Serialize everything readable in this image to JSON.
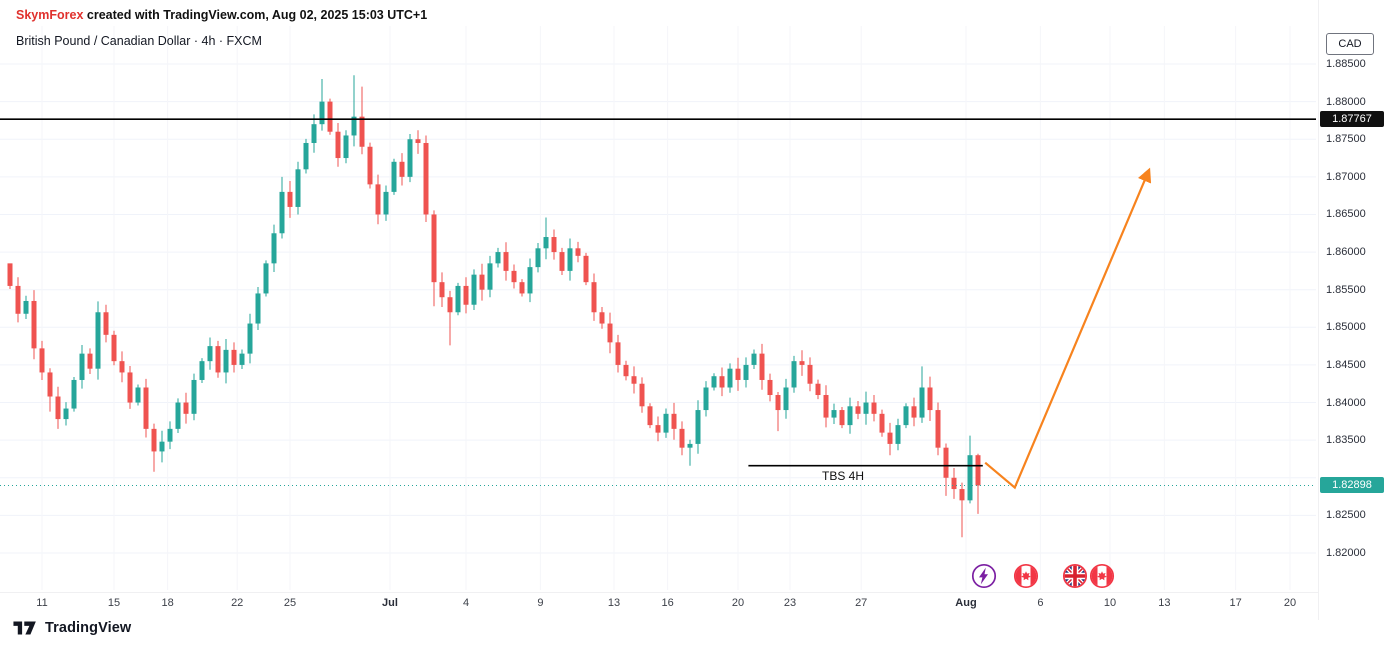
{
  "attribution": {
    "brand": "SkymForex",
    "rest": " created with TradingView.com, Aug 02, 2025 15:03 UTC+1"
  },
  "header": {
    "symbol_title": "British Pound / Canadian Dollar · 4h · FXCM"
  },
  "axis": {
    "currency_label": "CAD"
  },
  "badges": {
    "resistance_price": "1.87767",
    "last_price": "1.82898"
  },
  "annotations": {
    "support_label": "TBS 4H"
  },
  "footer": {
    "logo_text": "TradingView"
  },
  "colors": {
    "up": "#26a69a",
    "down": "#ef5350",
    "arrow": "#f7831e",
    "brand_red": "#e0312d",
    "badge_black": "#101010",
    "badge_teal": "#26a69a",
    "event_purple": "#7b1fa2",
    "event_red": "#f23645",
    "uk_blue": "#26387f",
    "grid": "#f0f3fa",
    "vgrid": "#f5f6f9",
    "line_black": "#000000"
  },
  "chart_data": {
    "type": "candlestick",
    "title": "British Pound / Canadian Dollar",
    "interval": "4h",
    "exchange": "FXCM",
    "quote_currency": "CAD",
    "last_price": 1.82898,
    "y_axis": {
      "ticks": [
        {
          "label": "1.88500",
          "value": 1.885
        },
        {
          "label": "1.88000",
          "value": 1.88
        },
        {
          "label": "1.87500",
          "value": 1.875
        },
        {
          "label": "1.87000",
          "value": 1.87
        },
        {
          "label": "1.86500",
          "value": 1.865
        },
        {
          "label": "1.86000",
          "value": 1.86
        },
        {
          "label": "1.85500",
          "value": 1.855
        },
        {
          "label": "1.85000",
          "value": 1.85
        },
        {
          "label": "1.84500",
          "value": 1.845
        },
        {
          "label": "1.84000",
          "value": 1.84
        },
        {
          "label": "1.83500",
          "value": 1.835
        },
        {
          "label": "1.82500",
          "value": 1.825
        },
        {
          "label": "1.82000",
          "value": 1.82
        }
      ],
      "gridlines": [
        1.885,
        1.88,
        1.875,
        1.87,
        1.865,
        1.86,
        1.855,
        1.85,
        1.845,
        1.84,
        1.835,
        1.83,
        1.825,
        1.82
      ]
    },
    "x_axis": {
      "ticks": [
        {
          "label": "11",
          "i": 4
        },
        {
          "label": "15",
          "i": 13
        },
        {
          "label": "18",
          "i": 19.7
        },
        {
          "label": "22",
          "i": 28.4
        },
        {
          "label": "25",
          "i": 35
        },
        {
          "label": "Jul",
          "i": 47.5,
          "bold": true
        },
        {
          "label": "4",
          "i": 57
        },
        {
          "label": "9",
          "i": 66.3
        },
        {
          "label": "13",
          "i": 75.5
        },
        {
          "label": "16",
          "i": 82.2
        },
        {
          "label": "20",
          "i": 91
        },
        {
          "label": "23",
          "i": 97.5
        },
        {
          "label": "27",
          "i": 106.4
        },
        {
          "label": "Aug",
          "i": 119.5,
          "bold": true
        },
        {
          "label": "6",
          "i": 128.8
        },
        {
          "label": "10",
          "i": 137.5
        },
        {
          "label": "13",
          "i": 144.3
        },
        {
          "label": "17",
          "i": 153.2
        },
        {
          "label": "20",
          "i": 160
        }
      ]
    },
    "resistance_line": {
      "price": 1.87767
    },
    "support_line": {
      "price": 1.8316,
      "from_i": 92.3,
      "to_i": 121.6,
      "label": "TBS 4H"
    },
    "last_price_line": {
      "price": 1.82898
    },
    "arrow": {
      "points": [
        [
          121.9,
          1.832
        ],
        [
          125.6,
          1.8287
        ],
        [
          142.3,
          1.8707
        ]
      ]
    },
    "events": [
      "lightning",
      "canada-flag",
      "uk-flag",
      "canada-flag"
    ],
    "candles": {
      "first_open": 1.8585,
      "default_wick": 0.0012,
      "closes": [
        1.8555,
        1.8518,
        1.8535,
        1.8472,
        1.844,
        1.8408,
        1.8378,
        1.8392,
        1.843,
        1.8465,
        1.8445,
        1.852,
        1.849,
        1.8455,
        1.844,
        1.84,
        1.842,
        1.8365,
        1.8335,
        1.8348,
        1.8365,
        1.84,
        1.8385,
        1.843,
        1.8455,
        1.8475,
        1.844,
        1.847,
        1.845,
        1.8465,
        1.8505,
        1.8545,
        1.8585,
        1.8625,
        1.868,
        1.866,
        1.871,
        1.8745,
        1.877,
        1.88,
        1.876,
        1.8725,
        1.8755,
        1.878,
        1.874,
        1.869,
        1.865,
        1.868,
        1.872,
        1.87,
        1.875,
        1.8745,
        1.865,
        1.856,
        1.854,
        1.852,
        1.8555,
        1.853,
        1.857,
        1.855,
        1.8585,
        1.86,
        1.8575,
        1.856,
        1.8545,
        1.858,
        1.8605,
        1.862,
        1.86,
        1.8575,
        1.8605,
        1.8595,
        1.856,
        1.852,
        1.8505,
        1.848,
        1.845,
        1.8435,
        1.8425,
        1.8395,
        1.837,
        1.836,
        1.8385,
        1.8365,
        1.834,
        1.8345,
        1.839,
        1.842,
        1.8435,
        1.842,
        1.8445,
        1.843,
        1.845,
        1.8465,
        1.843,
        1.841,
        1.839,
        1.842,
        1.8455,
        1.845,
        1.8425,
        1.841,
        1.838,
        1.839,
        1.837,
        1.8395,
        1.8385,
        1.84,
        1.8385,
        1.836,
        1.8345,
        1.837,
        1.8395,
        1.838,
        1.842,
        1.839,
        1.834,
        1.83,
        1.8285,
        1.827,
        1.833,
        1.82898
      ],
      "overrides": {
        "0": {
          "h": 1.858
        },
        "5": {
          "l": 1.8388
        },
        "18": {
          "l": 1.8308
        },
        "34": {
          "h": 1.87
        },
        "39": {
          "h": 1.883
        },
        "43": {
          "h": 1.8835
        },
        "44": {
          "h": 1.882
        },
        "51": {
          "h": 1.8762
        },
        "53": {
          "l": 1.8528
        },
        "55": {
          "l": 1.8476
        },
        "67": {
          "h": 1.8646
        },
        "85": {
          "l": 1.8316
        },
        "96": {
          "l": 1.8362
        },
        "110": {
          "l": 1.833
        },
        "114": {
          "h": 1.8448
        },
        "117": {
          "l": 1.8276
        },
        "119": {
          "l": 1.8221
        },
        "120": {
          "h": 1.8356
        },
        "121": {
          "l": 1.8252,
          "h": 1.8332
        }
      }
    }
  }
}
